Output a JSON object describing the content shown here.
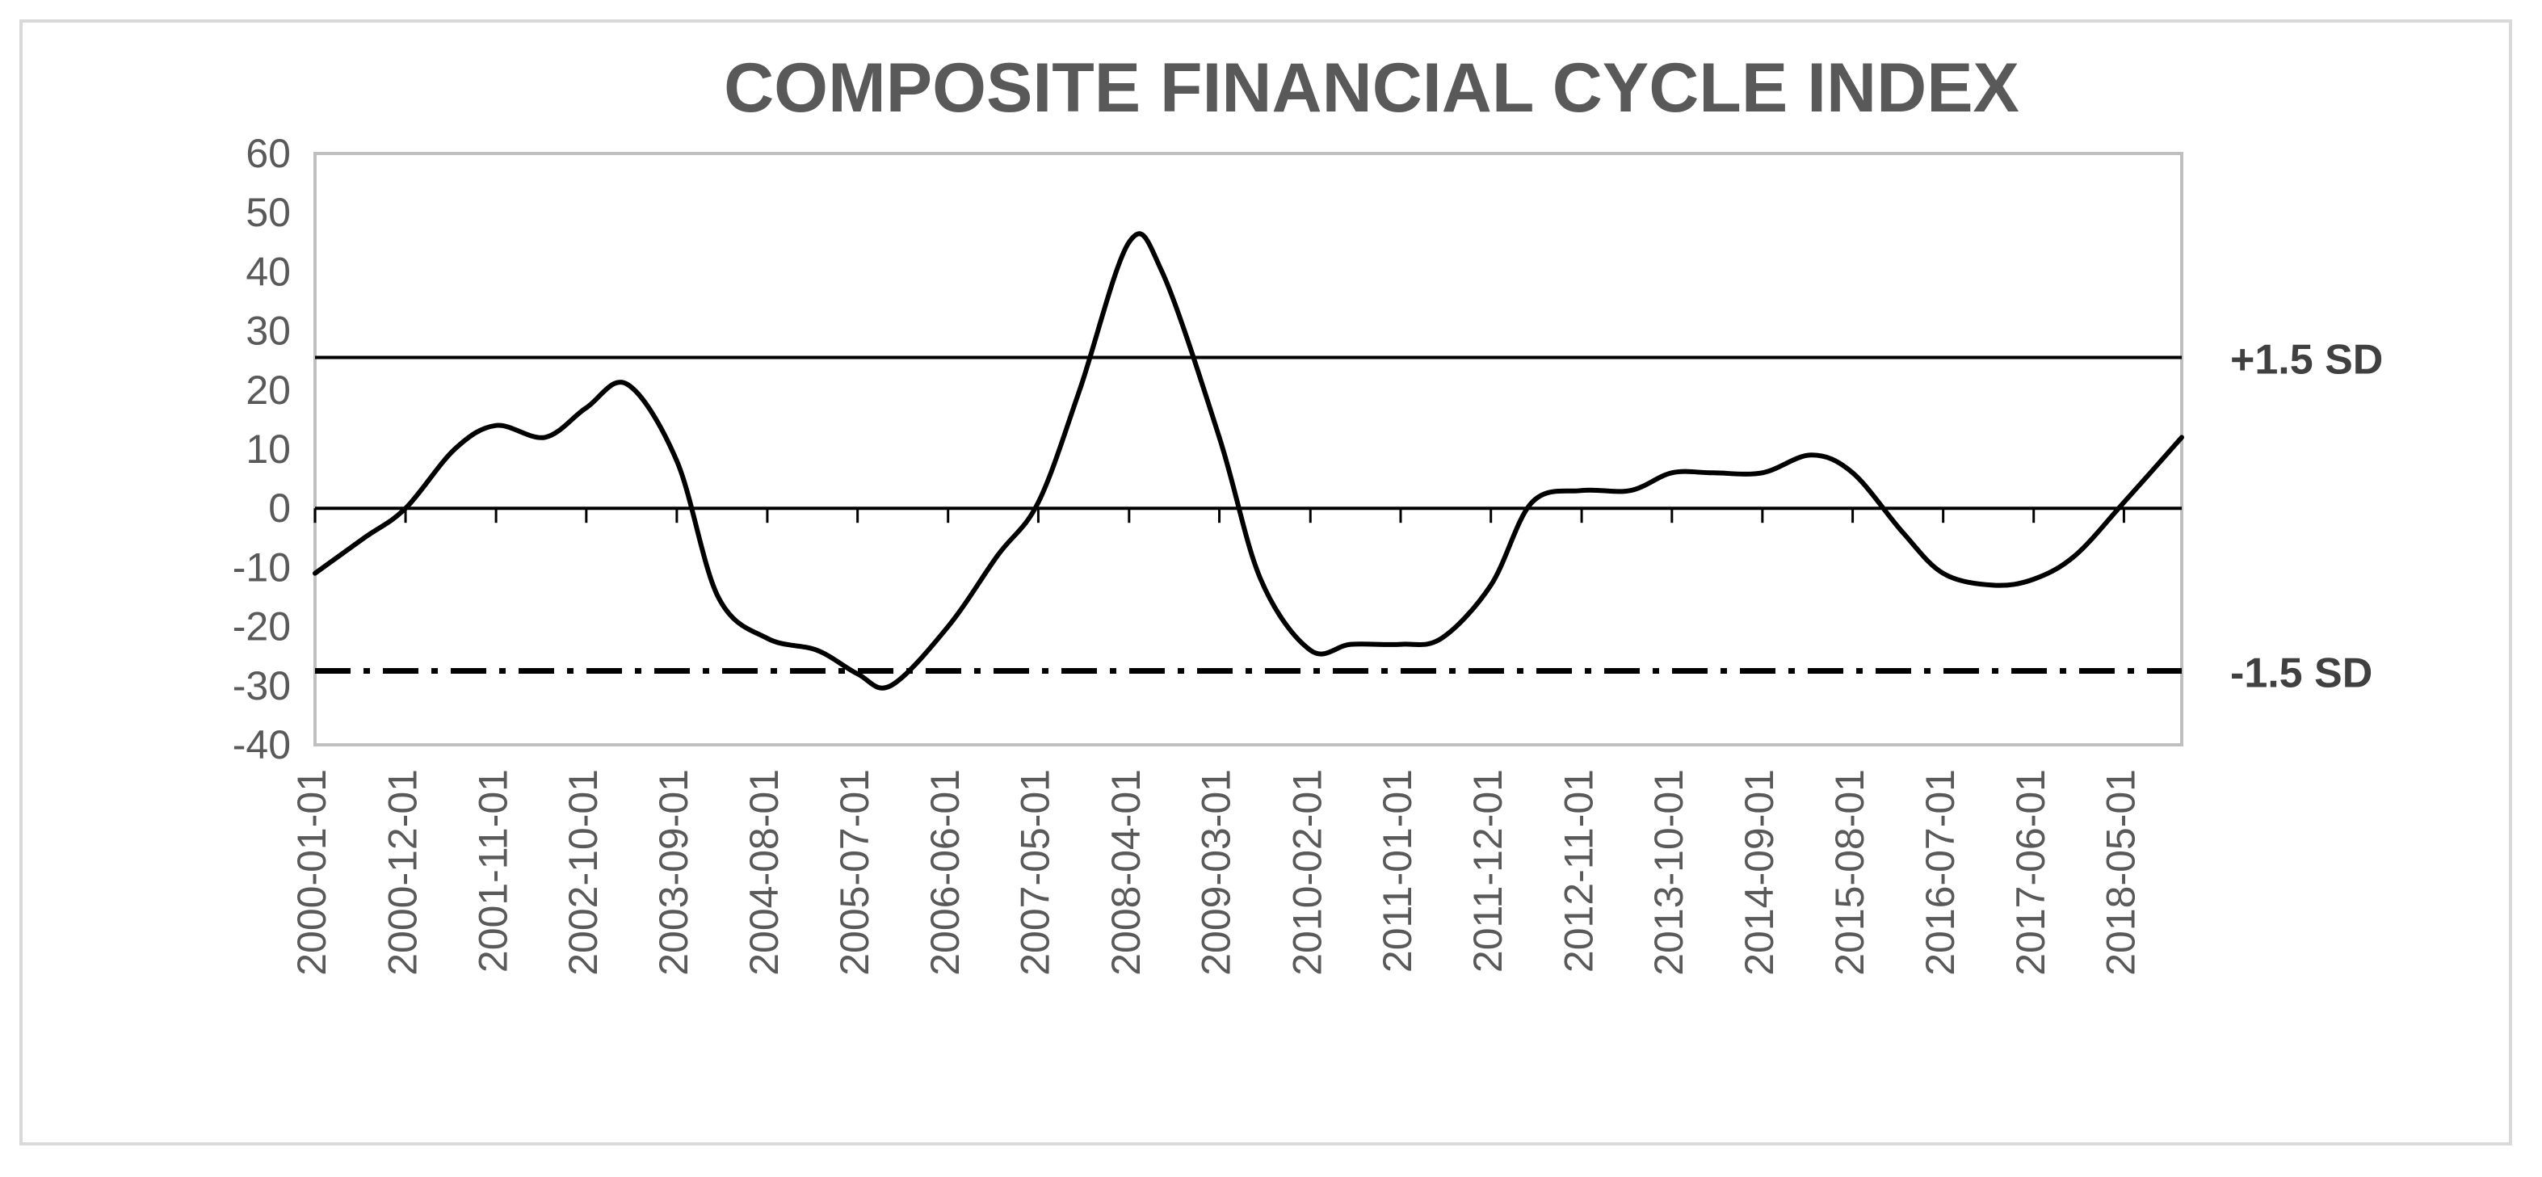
{
  "chart_data": {
    "type": "line",
    "title": "COMPOSITE FINANCIAL CYCLE INDEX",
    "xlabel": "",
    "ylabel": "",
    "ylim": [
      -40,
      60
    ],
    "yticks": [
      60,
      50,
      40,
      30,
      20,
      10,
      0,
      -10,
      -20,
      -30,
      -40
    ],
    "x_tick_labels": [
      "2000-01-01",
      "2000-12-01",
      "2001-11-01",
      "2002-10-01",
      "2003-09-01",
      "2004-08-01",
      "2005-07-01",
      "2006-06-01",
      "2007-05-01",
      "2008-04-01",
      "2009-03-01",
      "2010-02-01",
      "2011-01-01",
      "2011-12-01",
      "2012-11-01",
      "2013-10-01",
      "2014-09-01",
      "2015-08-01",
      "2016-07-01",
      "2017-06-01",
      "2018-05-01"
    ],
    "x_range": [
      "2000-01-01",
      "2018-12-01"
    ],
    "grid": false,
    "legend": "none",
    "colors": {
      "line": "#000000",
      "axis_text": "#595959",
      "frame": "#d9d9d9"
    },
    "reference_lines": [
      {
        "label": "+1.5 SD",
        "value": 25.5,
        "style": "solid"
      },
      {
        "label": "-1.5 SD",
        "value": -27.5,
        "style": "dash-dot"
      },
      {
        "label": "",
        "value": 0,
        "style": "solid"
      }
    ],
    "series": [
      {
        "x": [
          "2000-01-01",
          "2000-07-01",
          "2000-12-01",
          "2001-06-01",
          "2001-11-01",
          "2002-05-01",
          "2002-10-01",
          "2003-03-01",
          "2003-09-01",
          "2004-02-01",
          "2004-08-01",
          "2005-02-01",
          "2005-07-01",
          "2005-11-01",
          "2006-06-01",
          "2006-12-01",
          "2007-05-01",
          "2007-10-01",
          "2008-04-01",
          "2008-08-01",
          "2009-03-01",
          "2009-08-01",
          "2010-02-01",
          "2010-07-01",
          "2011-01-01",
          "2011-06-01",
          "2011-12-01",
          "2012-05-01",
          "2012-11-01",
          "2013-05-01",
          "2013-10-01",
          "2014-03-01",
          "2014-09-01",
          "2015-03-01",
          "2015-08-01",
          "2016-02-01",
          "2016-07-01",
          "2017-01-01",
          "2017-06-01",
          "2017-11-01",
          "2018-05-01",
          "2018-12-01"
        ],
        "values": [
          -11,
          -5,
          0,
          10,
          14,
          12,
          17,
          21,
          8,
          -15,
          -22,
          -24,
          -28,
          -30,
          -20,
          -8,
          1,
          20,
          45,
          40,
          12,
          -12,
          -24,
          -23,
          -23,
          -22,
          -13,
          1,
          3,
          3,
          6,
          6,
          6,
          9,
          6,
          -4,
          -11,
          -13,
          -12,
          -8,
          1,
          12
        ]
      }
    ]
  }
}
